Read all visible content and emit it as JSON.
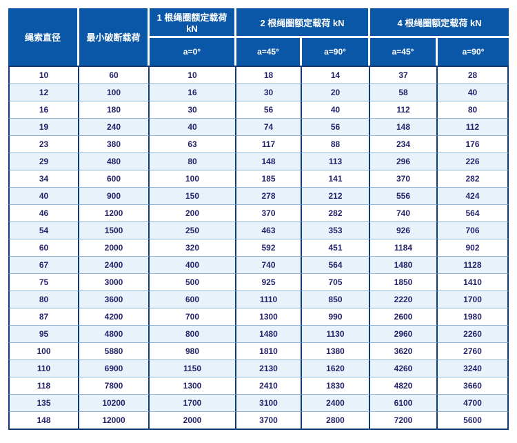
{
  "colors": {
    "header_bg": "#0a57a8",
    "header_text": "#ffffff",
    "body_text": "#23236a",
    "dark_border": "#113a78",
    "row_separator": "#8fb6d9",
    "row_alt_bg": "#e8f2fb",
    "row_bg": "#ffffff"
  },
  "table": {
    "header": {
      "diameter": "绳索直径",
      "min_break": "最小破断载荷"
    },
    "groups": [
      {
        "label": "1 根绳圈额定载荷 kN",
        "span": 1
      },
      {
        "label": "2 根绳圈额定载荷 kN",
        "span": 2
      },
      {
        "label": "4 根绳圈额定载荷 kN",
        "span": 2
      }
    ],
    "sub_headers": [
      "a=0°",
      "a=45°",
      "a=90°",
      "a=45°",
      "a=90°"
    ],
    "rows": [
      [
        10,
        60,
        10,
        18,
        14,
        37,
        28
      ],
      [
        12,
        100,
        16,
        30,
        20,
        58,
        40
      ],
      [
        16,
        180,
        30,
        56,
        40,
        112,
        80
      ],
      [
        19,
        240,
        40,
        74,
        56,
        148,
        112
      ],
      [
        23,
        380,
        63,
        117,
        88,
        234,
        176
      ],
      [
        29,
        480,
        80,
        148,
        113,
        296,
        226
      ],
      [
        34,
        600,
        100,
        185,
        141,
        370,
        282
      ],
      [
        40,
        900,
        150,
        278,
        212,
        556,
        424
      ],
      [
        46,
        1200,
        200,
        370,
        282,
        740,
        564
      ],
      [
        54,
        1500,
        250,
        463,
        353,
        926,
        706
      ],
      [
        60,
        2000,
        320,
        592,
        451,
        1184,
        902
      ],
      [
        67,
        2400,
        400,
        740,
        564,
        1480,
        1128
      ],
      [
        75,
        3000,
        500,
        925,
        705,
        1850,
        1410
      ],
      [
        80,
        3600,
        600,
        1110,
        850,
        2220,
        1700
      ],
      [
        87,
        4200,
        700,
        1300,
        990,
        2600,
        1980
      ],
      [
        95,
        4800,
        800,
        1480,
        1130,
        2960,
        2260
      ],
      [
        100,
        5880,
        980,
        1810,
        1380,
        3620,
        2760
      ],
      [
        110,
        6900,
        1150,
        2130,
        1620,
        4260,
        3240
      ],
      [
        118,
        7800,
        1300,
        2410,
        1830,
        4820,
        3660
      ],
      [
        135,
        10200,
        1700,
        3100,
        2400,
        6100,
        4700
      ],
      [
        148,
        12000,
        2000,
        3700,
        2800,
        7200,
        5600
      ]
    ]
  }
}
